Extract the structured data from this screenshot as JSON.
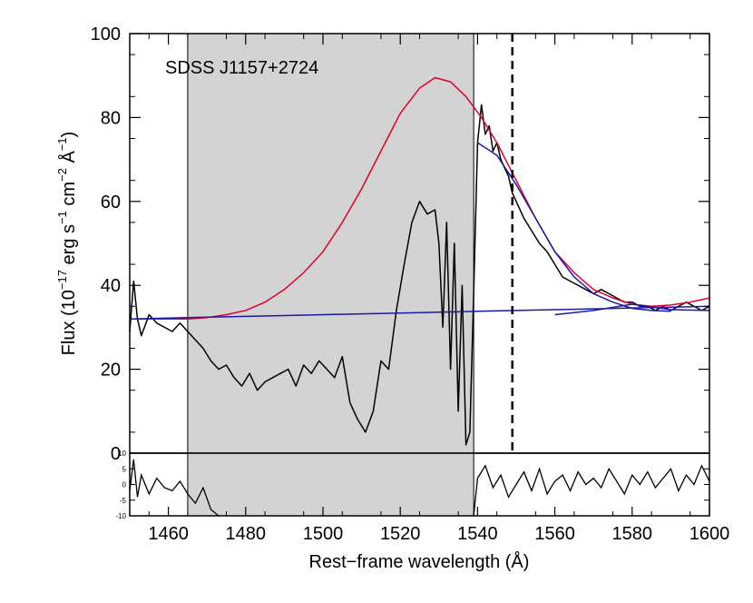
{
  "chart_data": [
    {
      "type": "line",
      "panel": "flux",
      "annotation": "SDSS J1157+2724",
      "ylabel_main": "Flux (10",
      "ylabel_parts": [
        "−17",
        " erg s",
        "−1",
        " cm",
        "−2",
        " Å",
        "−1",
        ")"
      ],
      "xlim": [
        1450,
        1600
      ],
      "ylim": [
        0,
        100
      ],
      "yticks": [
        0,
        20,
        40,
        60,
        80,
        100
      ],
      "shaded_region": [
        1465,
        1539
      ],
      "vertical_line": {
        "x": 1549,
        "style": "dashed"
      },
      "series": [
        {
          "color": "#000000",
          "x": [
            1450,
            1451,
            1452,
            1453,
            1455,
            1457,
            1459,
            1461,
            1463,
            1465,
            1467,
            1469,
            1471,
            1473,
            1475,
            1477,
            1479,
            1481,
            1483,
            1485,
            1487,
            1489,
            1491,
            1493,
            1495,
            1497,
            1499,
            1501,
            1503,
            1505,
            1507,
            1509,
            1511,
            1513,
            1515,
            1517,
            1519,
            1521,
            1523,
            1525,
            1527,
            1529,
            1530,
            1531,
            1532,
            1533,
            1534,
            1535,
            1536,
            1537,
            1538,
            1539,
            1540,
            1541,
            1542,
            1543,
            1544,
            1545,
            1546,
            1547,
            1548,
            1549,
            1550,
            1552,
            1554,
            1556,
            1558,
            1560,
            1562,
            1564,
            1566,
            1568,
            1570,
            1572,
            1574,
            1576,
            1578,
            1580,
            1582,
            1584,
            1586,
            1588,
            1590,
            1592,
            1594,
            1596,
            1598,
            1600
          ],
          "y": [
            29,
            41,
            32,
            28,
            33,
            31,
            30,
            29,
            31,
            29,
            27,
            25,
            22,
            20,
            21,
            18,
            16,
            19,
            15,
            17,
            18,
            19,
            20,
            16,
            21,
            19,
            22,
            20,
            18,
            23,
            12,
            8,
            5,
            10,
            22,
            20,
            34,
            45,
            55,
            60,
            57,
            58,
            50,
            30,
            55,
            20,
            50,
            10,
            40,
            2,
            5,
            38,
            74,
            83,
            76,
            78,
            72,
            74,
            70,
            68,
            66,
            62,
            60,
            56,
            53,
            50,
            48,
            45,
            42,
            41,
            40,
            39,
            38,
            39,
            38,
            37,
            36,
            36,
            35,
            35,
            34,
            35,
            34,
            35,
            36,
            35,
            34,
            35
          ]
        },
        {
          "color": "#e0002a",
          "x": [
            1450,
            1465,
            1470,
            1475,
            1480,
            1485,
            1490,
            1495,
            1500,
            1505,
            1510,
            1515,
            1520,
            1525,
            1529,
            1533,
            1537,
            1541,
            1545,
            1550,
            1555,
            1560,
            1565,
            1570,
            1575,
            1580,
            1585,
            1590,
            1595,
            1600
          ],
          "y": [
            32,
            32,
            32.3,
            33,
            34,
            36,
            39,
            43,
            48,
            55,
            63,
            72,
            81,
            87,
            89.5,
            88.5,
            85,
            80,
            74,
            65,
            56,
            48,
            43,
            39,
            37,
            35.5,
            35,
            35.3,
            36,
            37
          ]
        },
        {
          "color": "#1a1aa8",
          "x": [
            1450,
            1460,
            1470,
            1480,
            1490,
            1500,
            1510,
            1520,
            1530,
            1540,
            1550,
            1560,
            1570,
            1580,
            1590,
            1600
          ],
          "y": [
            32,
            32.2,
            32.4,
            32.6,
            32.8,
            33,
            33.2,
            33.4,
            33.6,
            33.8,
            34,
            34.2,
            34.4,
            34.6,
            34.8,
            35
          ]
        },
        {
          "color": "#1a1aa8",
          "x": [
            1540,
            1545,
            1550,
            1555,
            1560,
            1565,
            1570,
            1575,
            1580,
            1585,
            1590
          ],
          "y": [
            74,
            71,
            64,
            56,
            48,
            42,
            38,
            36,
            34.5,
            34,
            33.8
          ]
        },
        {
          "color": "#1a1aa8",
          "x": [
            1560,
            1570,
            1580,
            1590,
            1600
          ],
          "y": [
            33,
            34,
            35.5,
            34.2,
            34
          ]
        }
      ]
    },
    {
      "type": "line",
      "panel": "residual",
      "xlabel": "Rest−frame wavelength (Å)",
      "xlim": [
        1450,
        1600
      ],
      "ylim": [
        -10,
        10
      ],
      "xticks": [
        1460,
        1480,
        1500,
        1520,
        1540,
        1560,
        1580,
        1600
      ],
      "yticks": [
        -10,
        -5,
        0,
        5,
        10
      ],
      "shaded_region": [
        1465,
        1539
      ],
      "series": [
        {
          "color": "#000000",
          "x": [
            1450,
            1451,
            1452,
            1453,
            1455,
            1457,
            1459,
            1461,
            1463,
            1465,
            1467,
            1469,
            1471,
            1473,
            1539,
            1540,
            1542,
            1544,
            1546,
            1548,
            1550,
            1552,
            1554,
            1556,
            1558,
            1560,
            1562,
            1564,
            1566,
            1568,
            1570,
            1572,
            1574,
            1576,
            1578,
            1580,
            1582,
            1584,
            1586,
            1588,
            1590,
            1592,
            1594,
            1596,
            1598,
            1600
          ],
          "y": [
            -2,
            8,
            -4,
            3,
            -3,
            2,
            -1,
            -2,
            1,
            -3,
            -6,
            -1,
            -8,
            -10,
            -10,
            2,
            6,
            -1,
            3,
            -4,
            0,
            4,
            -2,
            5,
            -3,
            1,
            3,
            -2,
            4,
            0,
            2,
            -1,
            5,
            1,
            -3,
            3,
            0,
            4,
            -1,
            2,
            5,
            -2,
            3,
            0,
            6,
            1
          ]
        }
      ]
    }
  ]
}
